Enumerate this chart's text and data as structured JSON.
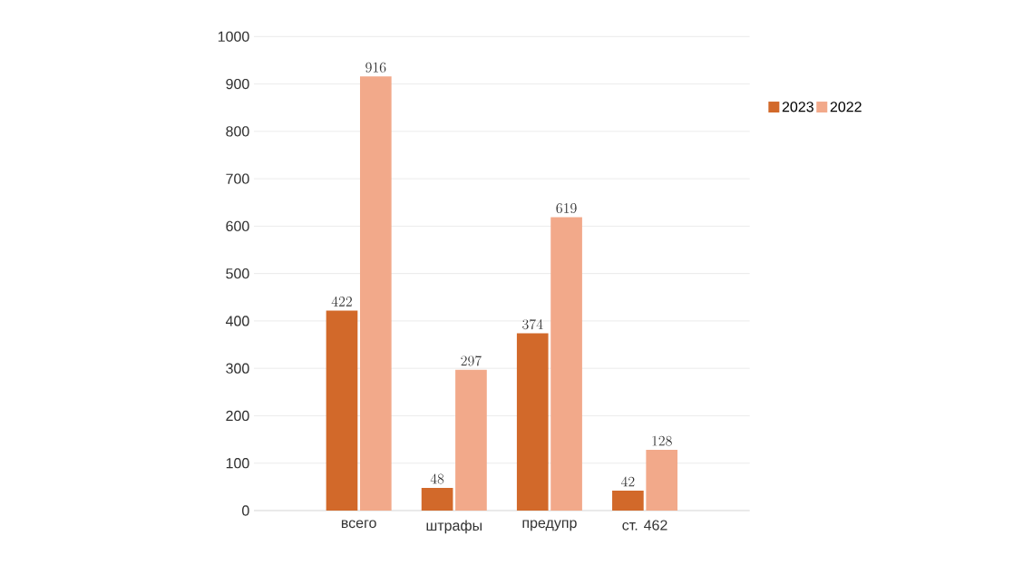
{
  "chart_data": {
    "type": "bar",
    "categories": [
      "всего",
      "штрафы",
      "предупр",
      "ст. 462"
    ],
    "series": [
      {
        "name": "2023",
        "color": "#d2692a",
        "values": [
          422,
          48,
          374,
          42
        ]
      },
      {
        "name": "2022",
        "color": "#f2a98a",
        "values": [
          916,
          297,
          619,
          128
        ]
      }
    ],
    "ylim": [
      0,
      1000
    ],
    "yticks": [
      0,
      100,
      200,
      300,
      400,
      500,
      600,
      700,
      800,
      900,
      1000
    ],
    "grid": "y",
    "legend": "right",
    "data_labels": true
  }
}
